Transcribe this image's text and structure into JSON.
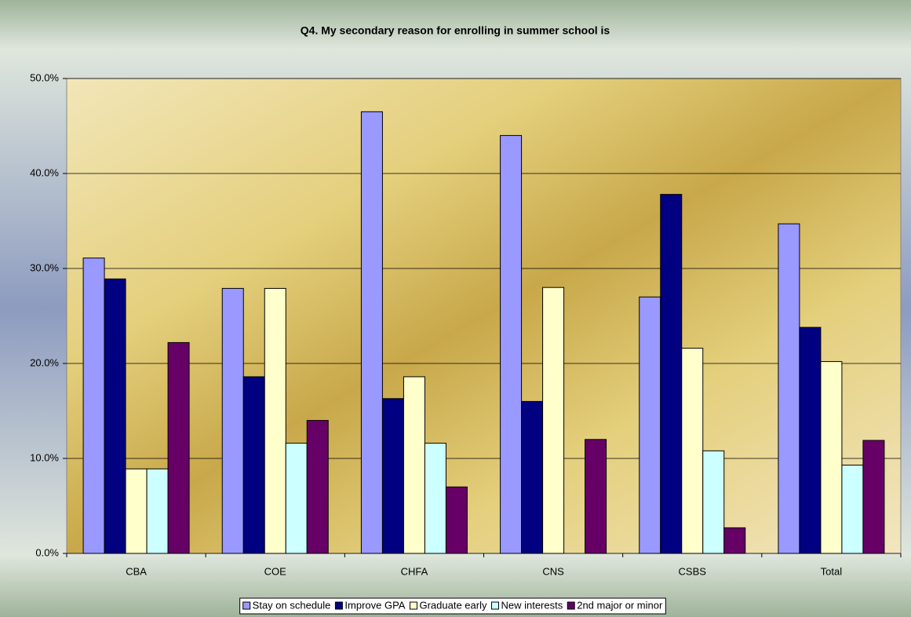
{
  "chart_data": {
    "type": "bar",
    "title": "Q4. My secondary reason for enrolling in summer school is",
    "categories": [
      "CBA",
      "COE",
      "CHFA",
      "CNS",
      "CSBS",
      "Total"
    ],
    "series": [
      {
        "name": "Stay on schedule",
        "color": "#9999ff",
        "values": [
          31.1,
          27.9,
          46.5,
          44.0,
          27.0,
          34.7
        ]
      },
      {
        "name": "Improve GPA",
        "color": "#000080",
        "values": [
          28.9,
          18.6,
          16.3,
          16.0,
          37.8,
          23.8
        ]
      },
      {
        "name": "Graduate early",
        "color": "#ffffcc",
        "values": [
          8.9,
          27.9,
          18.6,
          28.0,
          21.6,
          20.2
        ]
      },
      {
        "name": "New interests",
        "color": "#ccffff",
        "values": [
          8.9,
          11.6,
          11.6,
          0,
          10.8,
          9.3
        ]
      },
      {
        "name": "2nd major or minor",
        "color": "#660066",
        "values": [
          22.2,
          14.0,
          7.0,
          12.0,
          2.7,
          11.9
        ]
      }
    ],
    "ylim": [
      0,
      50
    ],
    "yticks": [
      {
        "value": 0,
        "label": "0.0%"
      },
      {
        "value": 10,
        "label": "10.0%"
      },
      {
        "value": 20,
        "label": "20.0%"
      },
      {
        "value": 30,
        "label": "30.0%"
      },
      {
        "value": 40,
        "label": "40.0%"
      },
      {
        "value": 50,
        "label": "50.0%"
      }
    ],
    "grid": true,
    "legend": "bottom"
  }
}
